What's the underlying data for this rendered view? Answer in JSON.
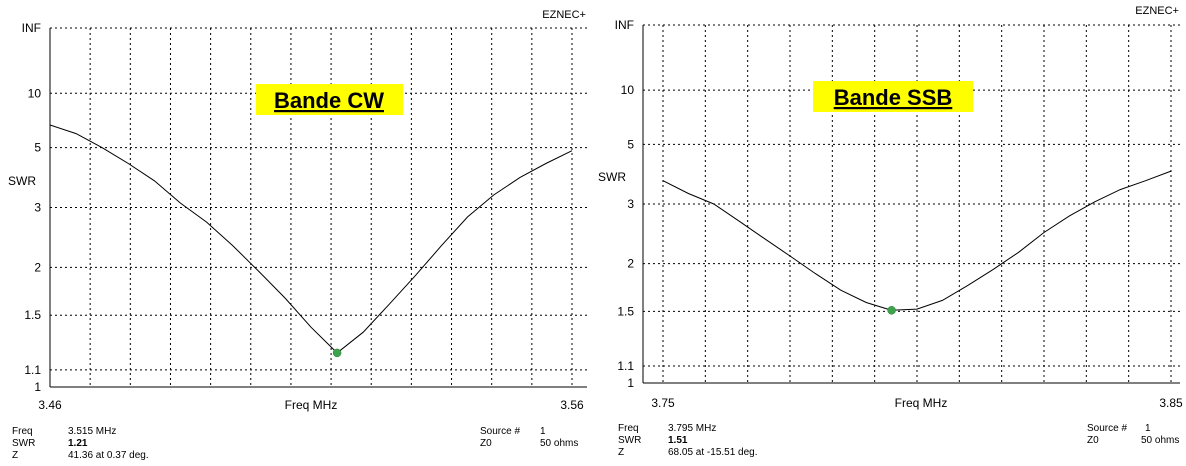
{
  "colors": {
    "band_highlight": "#ffff00",
    "marker": "#3fa34d",
    "curve": "#000000",
    "grid": "#000000"
  },
  "chart_data": [
    {
      "type": "line",
      "title": "",
      "brand": "EZNEC+",
      "band_label": "Bande CW",
      "xlabel": "Freq MHz",
      "ylabel": "SWR",
      "xlim": [
        3.46,
        3.56
      ],
      "y_scale": "reflection (INF at top)",
      "x_tick_labels": [
        "3.46",
        "3.56"
      ],
      "y_ticks": [
        1,
        1.1,
        1.5,
        2,
        3,
        5,
        10
      ],
      "y_tick_labels": [
        "1",
        "1.1",
        "1.5",
        "2",
        "3",
        "5",
        "10"
      ],
      "y_top_label": "INF",
      "grid": true,
      "series": [
        {
          "x": [
            3.46,
            3.465,
            3.47,
            3.475,
            3.48,
            3.485,
            3.49,
            3.495,
            3.5,
            3.505,
            3.51,
            3.515,
            3.52,
            3.525,
            3.53,
            3.535,
            3.54,
            3.545,
            3.55,
            3.555,
            3.56
          ],
          "y": [
            6.4,
            5.8,
            5.0,
            4.3,
            3.7,
            3.1,
            2.7,
            2.3,
            1.95,
            1.66,
            1.4,
            1.21,
            1.36,
            1.6,
            1.9,
            2.3,
            2.8,
            3.3,
            3.8,
            4.3,
            4.85
          ]
        }
      ],
      "marker": {
        "x": 3.515,
        "y": 1.21
      },
      "readout": {
        "freq_label": "Freq",
        "freq_value": "3.515 MHz",
        "swr_label": "SWR",
        "swr_value": "1.21",
        "z_label": "Z",
        "z_value": "41.36 at 0.37 deg.",
        "source_label": "Source #",
        "source_value": "1",
        "z0_label": "Z0",
        "z0_value": "50 ohms"
      }
    },
    {
      "type": "line",
      "title": "",
      "brand": "EZNEC+",
      "band_label": "Bande SSB",
      "xlabel": "Freq MHz",
      "ylabel": "SWR",
      "xlim": [
        3.75,
        3.85
      ],
      "y_scale": "reflection (INF at top)",
      "x_tick_labels": [
        "3.75",
        "3.85"
      ],
      "y_ticks": [
        1,
        1.1,
        1.5,
        2,
        3,
        5,
        10
      ],
      "y_tick_labels": [
        "1",
        "1.1",
        "1.5",
        "2",
        "3",
        "5",
        "10"
      ],
      "y_top_label": "INF",
      "grid": true,
      "series": [
        {
          "x": [
            3.75,
            3.755,
            3.76,
            3.765,
            3.77,
            3.775,
            3.78,
            3.785,
            3.79,
            3.795,
            3.8,
            3.805,
            3.81,
            3.815,
            3.82,
            3.825,
            3.83,
            3.835,
            3.84,
            3.845,
            3.85
          ],
          "y": [
            3.6,
            3.25,
            3.0,
            2.65,
            2.35,
            2.1,
            1.88,
            1.7,
            1.58,
            1.51,
            1.52,
            1.6,
            1.75,
            1.93,
            2.15,
            2.45,
            2.75,
            3.05,
            3.35,
            3.6,
            3.9
          ]
        }
      ],
      "marker": {
        "x": 3.795,
        "y": 1.51
      },
      "readout": {
        "freq_label": "Freq",
        "freq_value": "3.795 MHz",
        "swr_label": "SWR",
        "swr_value": "1.51",
        "z_label": "Z",
        "z_value": "68.05 at -15.51 deg.",
        "source_label": "Source #",
        "source_value": "1",
        "z0_label": "Z0",
        "z0_value": "50 ohms"
      }
    }
  ]
}
